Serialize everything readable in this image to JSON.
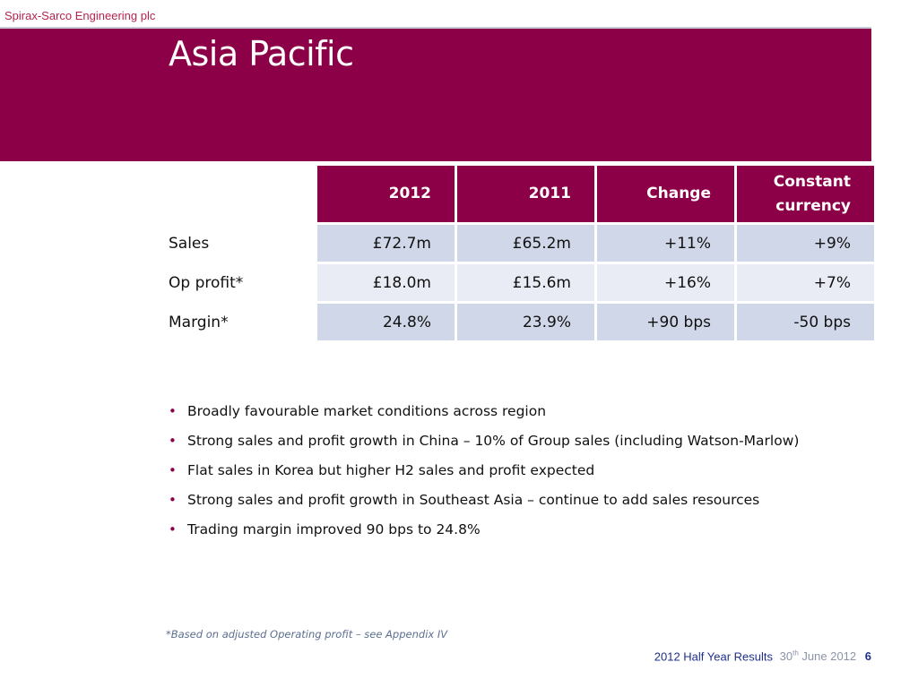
{
  "company_name": "Spirax-Sarco Engineering plc",
  "title": "Asia Pacific",
  "table": {
    "headers": [
      "2012",
      "2011",
      "Change",
      "Constant currency"
    ],
    "rows": [
      {
        "label": "Sales",
        "values": [
          "£72.7m",
          "£65.2m",
          "+11%",
          "+9%"
        ]
      },
      {
        "label": "Op profit*",
        "values": [
          "£18.0m",
          "£15.6m",
          "+16%",
          "+7%"
        ]
      },
      {
        "label": "Margin*",
        "values": [
          "24.8%",
          "23.9%",
          "+90 bps",
          "-50 bps"
        ]
      }
    ]
  },
  "bullets": [
    "Broadly favourable market conditions across region",
    "Strong sales and profit growth in China – 10% of Group sales (including Watson-Marlow)",
    "Flat sales in Korea but higher H2 sales and profit expected",
    "Strong sales and profit growth in Southeast Asia – continue to add sales resources",
    "Trading margin improved 90 bps to 24.8%"
  ],
  "footnote": "*Based on adjusted Operating profit – see Appendix IV",
  "footer": {
    "event": "2012 Half Year Results",
    "date_day": "30",
    "date_suffix": "th",
    "date_rest": "June 2012",
    "page": "6"
  },
  "colors": {
    "brand": "#8c0048",
    "row_dark": "#d0d7e8",
    "row_light": "#e9ecf4",
    "footer_text": "#1f2f8a"
  }
}
